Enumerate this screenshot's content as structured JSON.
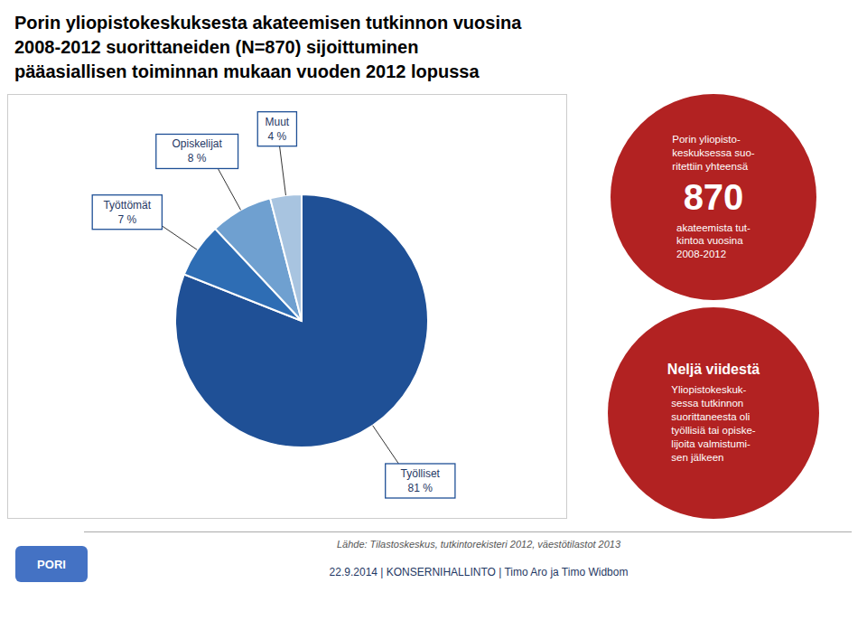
{
  "chart_data": {
    "type": "pie",
    "title": "Porin yliopistokeskuksesta akateemisen tutkinnon vuosina\n2008-2012 suorittaneiden (N=870) sijoittuminen\npääasiallisen toiminnan mukaan vuoden 2012 lopussa",
    "categories": [
      "Työlliset",
      "Työttömät",
      "Opiskelijat",
      "Muut"
    ],
    "values": [
      81,
      7,
      8,
      4
    ],
    "value_labels": [
      "81 %",
      "7 %",
      "8 %",
      "4 %"
    ],
    "colors": [
      "#1F5096",
      "#2E6DB4",
      "#6FA0D0",
      "#A8C4E0"
    ],
    "data_labels": true,
    "legend": false,
    "annotations": [
      {
        "text": "Porin yliopisto-\nkeskuksessa suo-\nritettiin yhteensä",
        "color": "#B22222"
      },
      {
        "text": "870",
        "color": "#B22222"
      },
      {
        "text": "akateemista tut-\nkintoa vuosina\n2008-2012",
        "color": "#B22222"
      },
      {
        "text": "Neljä viidestä",
        "color": "#B22222"
      },
      {
        "text": "Yliopistokeskuk-\nsessa tutkinnon\nsuorittaneesta oli\ntyöllisiä tai opiske-\nlijoita valmistumi-\nsen jälkeen",
        "color": "#B22222"
      },
      {
        "text": "PORI",
        "color": "#4472C4"
      },
      {
        "text": "Lähde: Tilastoskeskus, tutkintorekisteri 2012, väestötilastot 2013"
      },
      {
        "text": "22.9.2014 | KONSERNIHALLINTO | Timo Aro ja Timo Widbom"
      }
    ]
  }
}
